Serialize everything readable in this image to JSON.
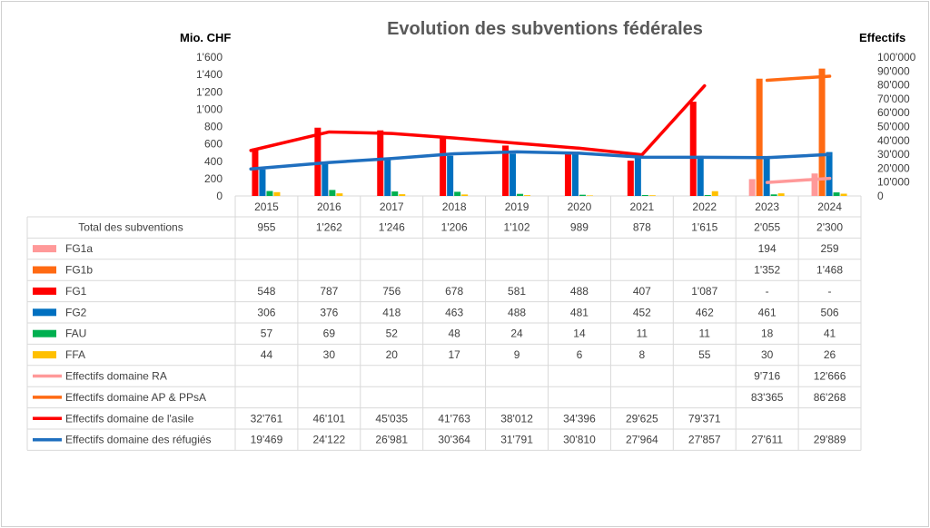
{
  "chart_data": {
    "type": "bar",
    "title": "Evolution des subventions fédérales",
    "y_left_title": "Mio. CHF",
    "y_right_title": "Effectifs",
    "y_left_ticks": [
      "0",
      "200",
      "400",
      "600",
      "800",
      "1'000",
      "1'200",
      "1'400",
      "1'600"
    ],
    "y_right_ticks": [
      "0",
      "10'000",
      "20'000",
      "30'000",
      "40'000",
      "50'000",
      "60'000",
      "70'000",
      "80'000",
      "90'000",
      "100'000"
    ],
    "y_left_lim": [
      0,
      1600
    ],
    "y_right_lim": [
      0,
      100000
    ],
    "categories": [
      "2015",
      "2016",
      "2017",
      "2018",
      "2019",
      "2020",
      "2021",
      "2022",
      "2023",
      "2024"
    ],
    "total": {
      "name": "Total des subventions",
      "labels": [
        "955",
        "1'262",
        "1'246",
        "1'206",
        "1'102",
        "989",
        "878",
        "1'615",
        "2'055",
        "2'300"
      ]
    },
    "bar_series": [
      {
        "name": "FG1a",
        "color": "#FF9999",
        "values": [
          null,
          null,
          null,
          null,
          null,
          null,
          null,
          null,
          194,
          259
        ],
        "labels": [
          "",
          "",
          "",
          "",
          "",
          "",
          "",
          "",
          "194",
          "259"
        ]
      },
      {
        "name": "FG1b",
        "color": "#FF6A13",
        "values": [
          null,
          null,
          null,
          null,
          null,
          null,
          null,
          null,
          1352,
          1468
        ],
        "labels": [
          "",
          "",
          "",
          "",
          "",
          "",
          "",
          "",
          "1'352",
          "1'468"
        ]
      },
      {
        "name": "FG1",
        "color": "#FF0000",
        "values": [
          548,
          787,
          756,
          678,
          581,
          488,
          407,
          1087,
          null,
          null
        ],
        "labels": [
          "548",
          "787",
          "756",
          "678",
          "581",
          "488",
          "407",
          "1'087",
          "-",
          "-"
        ]
      },
      {
        "name": "FG2",
        "color": "#0070C0",
        "values": [
          306,
          376,
          418,
          463,
          488,
          481,
          452,
          462,
          461,
          506
        ],
        "labels": [
          "306",
          "376",
          "418",
          "463",
          "488",
          "481",
          "452",
          "462",
          "461",
          "506"
        ]
      },
      {
        "name": "FAU",
        "color": "#00B050",
        "values": [
          57,
          69,
          52,
          48,
          24,
          14,
          11,
          11,
          18,
          41
        ],
        "labels": [
          "57",
          "69",
          "52",
          "48",
          "24",
          "14",
          "11",
          "11",
          "18",
          "41"
        ]
      },
      {
        "name": "FFA",
        "color": "#FFC000",
        "values": [
          44,
          30,
          20,
          17,
          9,
          6,
          8,
          55,
          30,
          26
        ],
        "labels": [
          "44",
          "30",
          "20",
          "17",
          "9",
          "6",
          "8",
          "55",
          "30",
          "26"
        ]
      }
    ],
    "line_series": [
      {
        "name": "Effectifs domaine RA",
        "color": "#FF9999",
        "values": [
          null,
          null,
          null,
          null,
          null,
          null,
          null,
          null,
          9716,
          12666
        ],
        "labels": [
          "",
          "",
          "",
          "",
          "",
          "",
          "",
          "",
          "9'716",
          "12'666"
        ]
      },
      {
        "name": "Effectifs domaine AP & PPsA",
        "color": "#FF6A13",
        "values": [
          null,
          null,
          null,
          null,
          null,
          null,
          null,
          null,
          83365,
          86268
        ],
        "labels": [
          "",
          "",
          "",
          "",
          "",
          "",
          "",
          "",
          "83'365",
          "86'268"
        ]
      },
      {
        "name": "Effectifs domaine de l'asile",
        "color": "#FF0000",
        "values": [
          32761,
          46101,
          45035,
          41763,
          38012,
          34396,
          29625,
          79371,
          null,
          null
        ],
        "labels": [
          "32'761",
          "46'101",
          "45'035",
          "41'763",
          "38'012",
          "34'396",
          "29'625",
          "79'371",
          "",
          ""
        ]
      },
      {
        "name": "Effectifs domaine des réfugiés",
        "color": "#1F6FBF",
        "values": [
          19469,
          24122,
          26981,
          30364,
          31791,
          30810,
          27964,
          27857,
          27611,
          29889
        ],
        "labels": [
          "19'469",
          "24'122",
          "26'981",
          "30'364",
          "31'791",
          "30'810",
          "27'964",
          "27'857",
          "27'611",
          "29'889"
        ]
      }
    ]
  }
}
